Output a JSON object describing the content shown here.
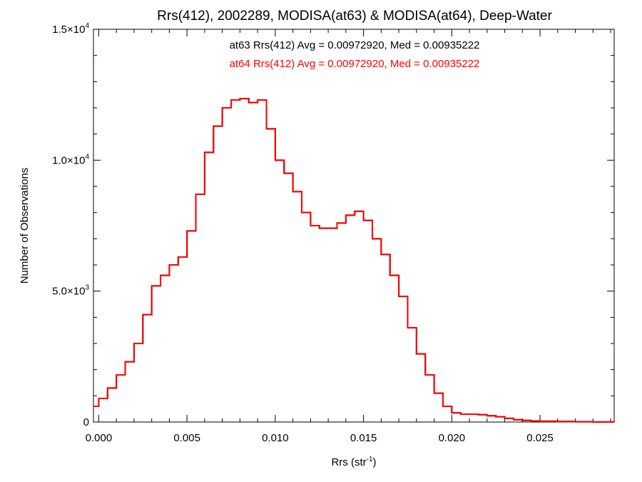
{
  "chart_data": {
    "type": "line",
    "style": "histogram-step",
    "title": "Rrs(412), 2002289, MODISA(at63) & MODISA(at64), Deep-Water",
    "xlabel": "Rrs (str",
    "xlabel_sup": "-1",
    "xlabel_end": ")",
    "ylabel": "Number of Observations",
    "xlim": [
      -0.0003,
      0.0292
    ],
    "ylim": [
      0,
      15000
    ],
    "x_ticks": [
      {
        "value": 0.0,
        "label": "0.000"
      },
      {
        "value": 0.005,
        "label": "0.005"
      },
      {
        "value": 0.01,
        "label": "0.010"
      },
      {
        "value": 0.015,
        "label": "0.015"
      },
      {
        "value": 0.02,
        "label": "0.020"
      },
      {
        "value": 0.025,
        "label": "0.025"
      }
    ],
    "y_ticks": [
      {
        "value": 0,
        "mant": "0",
        "exp": ""
      },
      {
        "value": 5000,
        "mant": "5.0×10",
        "exp": "3"
      },
      {
        "value": 10000,
        "mant": "1.0×10",
        "exp": "4"
      },
      {
        "value": 15000,
        "mant": "1.5×10",
        "exp": "4"
      }
    ],
    "grid": false,
    "series": [
      {
        "name": "at63",
        "color": "#000000",
        "stats_label": "at63 Rrs(412) Avg = 0.00972920, Med = 0.00935222",
        "x": [
          -0.0003,
          0.0,
          0.0005,
          0.001,
          0.0015,
          0.002,
          0.0025,
          0.003,
          0.0035,
          0.004,
          0.0045,
          0.005,
          0.0055,
          0.006,
          0.0065,
          0.007,
          0.0075,
          0.008,
          0.0085,
          0.009,
          0.0095,
          0.01,
          0.0105,
          0.011,
          0.0115,
          0.012,
          0.0125,
          0.013,
          0.0135,
          0.014,
          0.0145,
          0.015,
          0.0155,
          0.016,
          0.0165,
          0.017,
          0.0175,
          0.018,
          0.0185,
          0.019,
          0.0195,
          0.02,
          0.0205,
          0.021,
          0.0215,
          0.022,
          0.0225,
          0.023,
          0.0235,
          0.024,
          0.0245,
          0.025,
          0.026,
          0.027,
          0.028,
          0.0292
        ],
        "y": [
          600,
          900,
          1300,
          1800,
          2300,
          3000,
          4100,
          5200,
          5600,
          6000,
          6300,
          7300,
          8700,
          10300,
          11300,
          12000,
          12300,
          12350,
          12200,
          12300,
          11200,
          10000,
          9500,
          8800,
          8000,
          7500,
          7400,
          7400,
          7600,
          7900,
          8050,
          7700,
          7000,
          6400,
          5600,
          4800,
          3600,
          2600,
          1800,
          1100,
          600,
          350,
          300,
          300,
          280,
          240,
          200,
          140,
          90,
          60,
          40,
          30,
          20,
          10,
          5,
          0
        ]
      },
      {
        "name": "at64",
        "color": "#ff0000",
        "stats_label": "at64 Rrs(412) Avg = 0.00972920, Med = 0.00935222",
        "x": [
          -0.0003,
          0.0,
          0.0005,
          0.001,
          0.0015,
          0.002,
          0.0025,
          0.003,
          0.0035,
          0.004,
          0.0045,
          0.005,
          0.0055,
          0.006,
          0.0065,
          0.007,
          0.0075,
          0.008,
          0.0085,
          0.009,
          0.0095,
          0.01,
          0.0105,
          0.011,
          0.0115,
          0.012,
          0.0125,
          0.013,
          0.0135,
          0.014,
          0.0145,
          0.015,
          0.0155,
          0.016,
          0.0165,
          0.017,
          0.0175,
          0.018,
          0.0185,
          0.019,
          0.0195,
          0.02,
          0.0205,
          0.021,
          0.0215,
          0.022,
          0.0225,
          0.023,
          0.0235,
          0.024,
          0.0245,
          0.025,
          0.026,
          0.027,
          0.028,
          0.0292
        ],
        "y": [
          600,
          900,
          1300,
          1800,
          2300,
          3000,
          4100,
          5200,
          5600,
          6000,
          6300,
          7300,
          8700,
          10300,
          11300,
          12000,
          12300,
          12350,
          12200,
          12300,
          11200,
          10000,
          9500,
          8800,
          8000,
          7500,
          7400,
          7400,
          7600,
          7900,
          8050,
          7700,
          7000,
          6400,
          5600,
          4800,
          3600,
          2600,
          1800,
          1100,
          600,
          350,
          300,
          300,
          280,
          240,
          200,
          140,
          90,
          60,
          40,
          30,
          20,
          10,
          5,
          0
        ]
      }
    ]
  }
}
